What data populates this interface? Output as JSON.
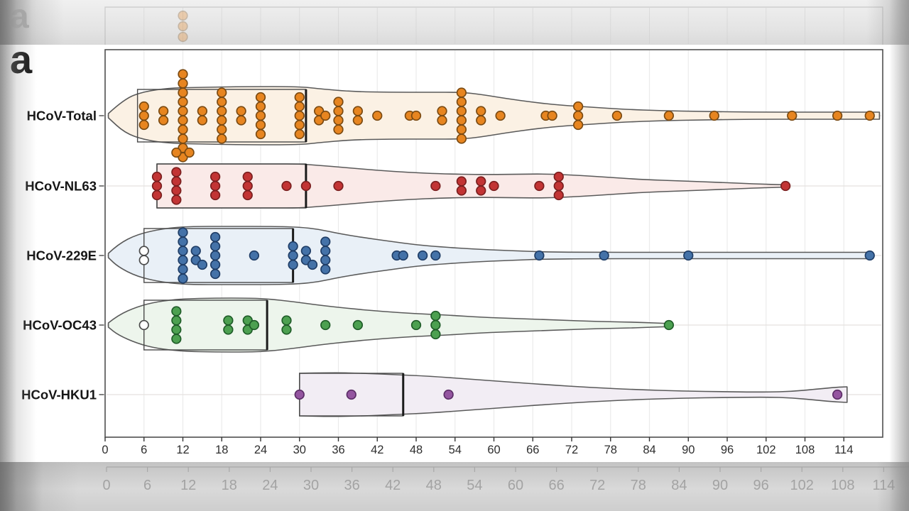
{
  "panel_label": "a",
  "figure_colors": {
    "violin_outline": "#5a5a5a",
    "box_outline": "#4a4a4a",
    "median": "#1b1b1b",
    "grid": "#ebebeb",
    "row_line": "#e5e1df",
    "axis": "#333333",
    "tick_label": "#2e2e2e",
    "category_label": "#151515",
    "open_point_fill": "#ffffff",
    "open_point_stroke": "#4a4a4a",
    "reflection_grey": "#9b9b9b",
    "faded_label": "#8e8e8e"
  },
  "chart_data": {
    "type": "violin",
    "orientation": "horizontal",
    "title": "",
    "xlabel": "",
    "ylabel": "",
    "grid": "on",
    "x_axis": {
      "ticks": [
        0,
        6,
        12,
        18,
        24,
        30,
        36,
        42,
        48,
        54,
        60,
        66,
        72,
        78,
        84,
        90,
        96,
        102,
        108,
        114
      ],
      "range": [
        0,
        120
      ]
    },
    "categories": [
      "HCoV-Total",
      "HCoV-NL63",
      "HCoV-229E",
      "HCoV-OC43",
      "HCoV-HKU1"
    ],
    "series": [
      {
        "name": "HCoV-Total",
        "point_color": "#E78520",
        "point_stroke": "#7A4A12",
        "violin_fill": "#FBF1E4",
        "box": {
          "q1": 5,
          "q3": 31,
          "median": 31,
          "half_height": 37
        },
        "clusters": [
          [
            6,
            3
          ],
          [
            9,
            2
          ],
          [
            12,
            10
          ],
          [
            11,
            1,
            52
          ],
          [
            13,
            1,
            52
          ],
          [
            15,
            2
          ],
          [
            18,
            6
          ],
          [
            21,
            2
          ],
          [
            24,
            5
          ],
          [
            30,
            5
          ],
          [
            33,
            2
          ],
          [
            34,
            1
          ],
          [
            36,
            4
          ],
          [
            39,
            2
          ],
          [
            42,
            1
          ],
          [
            47,
            1
          ],
          [
            48,
            1
          ],
          [
            52,
            2
          ],
          [
            55,
            6
          ],
          [
            58,
            2
          ],
          [
            61,
            1
          ],
          [
            68,
            1
          ],
          [
            69,
            1
          ],
          [
            73,
            3
          ],
          [
            79,
            1
          ],
          [
            87,
            1
          ],
          [
            94,
            1
          ],
          [
            106,
            1
          ],
          [
            113,
            1
          ],
          [
            118,
            1
          ]
        ],
        "open_clusters": [],
        "violin_profile": [
          [
            0.5,
            3
          ],
          [
            3,
            24
          ],
          [
            6,
            34
          ],
          [
            10,
            39
          ],
          [
            15,
            40
          ],
          [
            22,
            41
          ],
          [
            30,
            41
          ],
          [
            33,
            38
          ],
          [
            38,
            34
          ],
          [
            44,
            33
          ],
          [
            50,
            33
          ],
          [
            55,
            33
          ],
          [
            58,
            30
          ],
          [
            62,
            24
          ],
          [
            66,
            19
          ],
          [
            70,
            15
          ],
          [
            75,
            12
          ],
          [
            80,
            9
          ],
          [
            86,
            7
          ],
          [
            92,
            6
          ],
          [
            100,
            5
          ],
          [
            108,
            5
          ],
          [
            114,
            5
          ],
          [
            119.5,
            5
          ]
        ],
        "cap_left": false,
        "cap_right": true
      },
      {
        "name": "HCoV-NL63",
        "point_color": "#C23434",
        "point_stroke": "#7A1F1F",
        "violin_fill": "#FAEAE8",
        "box": {
          "q1": 8,
          "q3": 31,
          "median": 31,
          "half_height": 31
        },
        "clusters": [
          [
            8,
            3
          ],
          [
            11,
            4
          ],
          [
            17,
            3
          ],
          [
            22,
            3
          ],
          [
            28,
            1
          ],
          [
            31,
            1
          ],
          [
            36,
            1
          ],
          [
            51,
            1
          ],
          [
            55,
            2
          ],
          [
            58,
            2
          ],
          [
            60,
            1
          ],
          [
            67,
            1
          ],
          [
            70,
            3
          ],
          [
            105,
            1
          ]
        ],
        "open_clusters": [],
        "violin_profile": [
          [
            8,
            31
          ],
          [
            14,
            31
          ],
          [
            20,
            31
          ],
          [
            26,
            31
          ],
          [
            30,
            31
          ],
          [
            33,
            29
          ],
          [
            37,
            26
          ],
          [
            42,
            22
          ],
          [
            47,
            19
          ],
          [
            52,
            17
          ],
          [
            58,
            16
          ],
          [
            63,
            16.5
          ],
          [
            68,
            17
          ],
          [
            73,
            15
          ],
          [
            78,
            12
          ],
          [
            83,
            9
          ],
          [
            89,
            7
          ],
          [
            95,
            5
          ],
          [
            100,
            3
          ],
          [
            105.5,
            1.5
          ]
        ],
        "cap_left": true,
        "cap_right": false
      },
      {
        "name": "HCoV-229E",
        "point_color": "#4472A8",
        "point_stroke": "#1F3D66",
        "violin_fill": "#E9F0F7",
        "box": {
          "q1": 6,
          "q3": 29,
          "median": 29,
          "half_height": 38
        },
        "clusters": [
          [
            12,
            6
          ],
          [
            14,
            2
          ],
          [
            15,
            1,
            13
          ],
          [
            17,
            5
          ],
          [
            23,
            1
          ],
          [
            29,
            3
          ],
          [
            31,
            2
          ],
          [
            32,
            1,
            13
          ],
          [
            34,
            4
          ],
          [
            45,
            1
          ],
          [
            46,
            1
          ],
          [
            49,
            1
          ],
          [
            51,
            1
          ],
          [
            67,
            1
          ],
          [
            77,
            1
          ],
          [
            90,
            1
          ],
          [
            118,
            1
          ]
        ],
        "open_clusters": [
          [
            6,
            2
          ]
        ],
        "violin_profile": [
          [
            0.5,
            3
          ],
          [
            2,
            16
          ],
          [
            5,
            30
          ],
          [
            9,
            38
          ],
          [
            13,
            41
          ],
          [
            19,
            41
          ],
          [
            26,
            41
          ],
          [
            30,
            40
          ],
          [
            33,
            37
          ],
          [
            36,
            31
          ],
          [
            40,
            25
          ],
          [
            44,
            20
          ],
          [
            48,
            15
          ],
          [
            52,
            12
          ],
          [
            57,
            9
          ],
          [
            62,
            7
          ],
          [
            68,
            5
          ],
          [
            75,
            4.5
          ],
          [
            85,
            4.5
          ],
          [
            95,
            4.5
          ],
          [
            105,
            4.5
          ],
          [
            112,
            4.5
          ],
          [
            118.5,
            4.5
          ]
        ],
        "cap_left": false,
        "cap_right": true
      },
      {
        "name": "HCoV-OC43",
        "point_color": "#4CA050",
        "point_stroke": "#1F5C28",
        "violin_fill": "#EDF5EC",
        "box": {
          "q1": 6,
          "q3": 25,
          "median": 25,
          "half_height": 35
        },
        "clusters": [
          [
            11,
            4
          ],
          [
            19,
            2
          ],
          [
            22,
            2
          ],
          [
            23,
            1
          ],
          [
            28,
            2
          ],
          [
            34,
            1
          ],
          [
            39,
            1
          ],
          [
            48,
            1
          ],
          [
            51,
            3
          ],
          [
            87,
            1
          ]
        ],
        "open_clusters": [
          [
            6,
            1
          ]
        ],
        "violin_profile": [
          [
            0.5,
            3
          ],
          [
            2,
            14
          ],
          [
            5,
            26
          ],
          [
            8,
            33
          ],
          [
            12,
            37
          ],
          [
            17,
            38
          ],
          [
            22,
            38
          ],
          [
            25,
            37
          ],
          [
            29,
            33
          ],
          [
            33,
            28
          ],
          [
            38,
            23
          ],
          [
            43,
            19
          ],
          [
            48,
            16
          ],
          [
            53,
            14
          ],
          [
            58,
            11
          ],
          [
            64,
            9
          ],
          [
            70,
            7
          ],
          [
            76,
            5
          ],
          [
            82,
            4
          ],
          [
            87.5,
            2
          ]
        ],
        "cap_left": false,
        "cap_right": false
      },
      {
        "name": "HCoV-HKU1",
        "point_color": "#9455A0",
        "point_stroke": "#5B2D66",
        "violin_fill": "#F2EDF4",
        "box": {
          "q1": 30,
          "q3": 46,
          "median": 46,
          "half_height": 30
        },
        "clusters": [
          [
            30,
            1
          ],
          [
            38,
            1
          ],
          [
            53,
            1
          ],
          [
            113,
            1
          ]
        ],
        "open_clusters": [],
        "violin_profile": [
          [
            30,
            30
          ],
          [
            35,
            31
          ],
          [
            40,
            30
          ],
          [
            45,
            28
          ],
          [
            50,
            26
          ],
          [
            56,
            22
          ],
          [
            62,
            18
          ],
          [
            68,
            14
          ],
          [
            75,
            10
          ],
          [
            82,
            7
          ],
          [
            89,
            5
          ],
          [
            96,
            4
          ],
          [
            102,
            3.5
          ],
          [
            106,
            4.5
          ],
          [
            110,
            8
          ],
          [
            113,
            10.5
          ],
          [
            114.5,
            11
          ]
        ],
        "cap_left": true,
        "cap_right": true
      }
    ]
  },
  "reflections": {
    "top_dots": {
      "value": 12,
      "count": 3
    },
    "bottom_axis_ticks": [
      0,
      6,
      12,
      18,
      24,
      30,
      36,
      42,
      48,
      54,
      60,
      66,
      72,
      78,
      84,
      90,
      96,
      102,
      108,
      114
    ]
  }
}
